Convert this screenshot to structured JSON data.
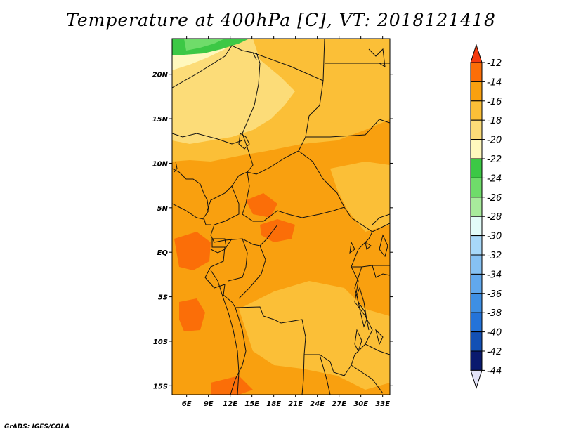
{
  "title": "Temperature at 400hPa [C], VT: 2018121418",
  "footer": "GrADS: IGES/COLA",
  "map": {
    "lon_range": [
      4,
      34
    ],
    "lat_range": [
      -16,
      24
    ],
    "lat_ticks": [
      {
        "value": 20,
        "label": "20N"
      },
      {
        "value": 15,
        "label": "15N"
      },
      {
        "value": 10,
        "label": "10N"
      },
      {
        "value": 5,
        "label": "5N"
      },
      {
        "value": 0,
        "label": "EQ"
      },
      {
        "value": -5,
        "label": "5S"
      },
      {
        "value": -10,
        "label": "10S"
      },
      {
        "value": -15,
        "label": "15S"
      }
    ],
    "lon_ticks": [
      {
        "value": 6,
        "label": "6E"
      },
      {
        "value": 9,
        "label": "9E"
      },
      {
        "value": 12,
        "label": "12E"
      },
      {
        "value": 15,
        "label": "15E"
      },
      {
        "value": 18,
        "label": "18E"
      },
      {
        "value": 21,
        "label": "21E"
      },
      {
        "value": 24,
        "label": "24E"
      },
      {
        "value": 27,
        "label": "27E"
      },
      {
        "value": 30,
        "label": "30E"
      },
      {
        "value": 33,
        "label": "33E"
      }
    ]
  },
  "colorbar": {
    "labels": [
      "-12",
      "-14",
      "-16",
      "-18",
      "-20",
      "-22",
      "-24",
      "-26",
      "-28",
      "-30",
      "-32",
      "-34",
      "-36",
      "-38",
      "-40",
      "-42",
      "-44"
    ],
    "colors": [
      "#ff3a0c",
      "#fb6e08",
      "#f9a00f",
      "#fbbf37",
      "#fcdc78",
      "#fff8bd",
      "#3cc845",
      "#6fdc6a",
      "#a8eb9c",
      "#e2fbf8",
      "#a8d8f8",
      "#86c1f2",
      "#61a8ed",
      "#3e8fe4",
      "#2473d9",
      "#1350b4",
      "#0a1a6e"
    ],
    "top_arrow_color": "#f53a0f",
    "bottom_arrow_color": "#e4e4f8"
  }
}
